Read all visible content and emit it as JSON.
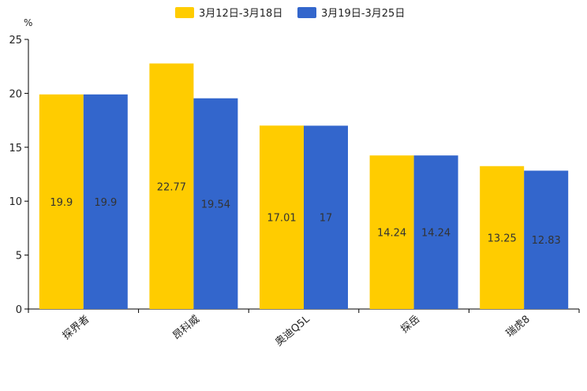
{
  "chart_data": {
    "type": "bar",
    "title": "",
    "ylabel": "%",
    "xlabel": "",
    "categories": [
      "探界者",
      "昂科威",
      "奥迪Q5L",
      "探岳",
      "瑞虎8"
    ],
    "series": [
      {
        "name": "3月12日-3月18日",
        "color": "#FFCC00",
        "values": [
          19.9,
          22.77,
          17.01,
          14.24,
          13.25
        ]
      },
      {
        "name": "3月19日-3月25日",
        "color": "#3366CC",
        "values": [
          19.9,
          19.54,
          17,
          14.24,
          12.83
        ]
      }
    ],
    "ylim": [
      0,
      25
    ],
    "yticks": [
      0,
      5,
      10,
      15,
      20,
      25
    ],
    "legend_position": "top-center",
    "grid": false
  }
}
